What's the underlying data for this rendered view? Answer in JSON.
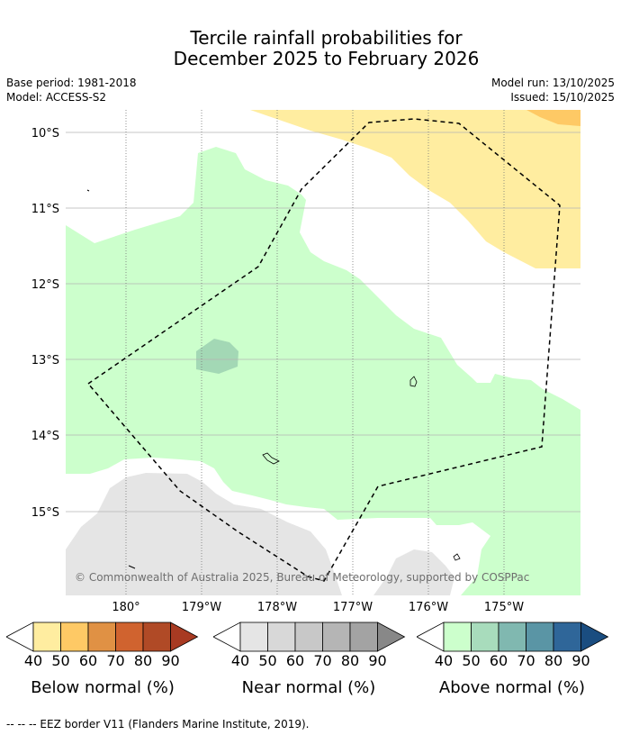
{
  "title": {
    "line1": "Tercile rainfall probabilities for",
    "line2": "December 2025 to February 2026"
  },
  "meta": {
    "base_period": "Base period: 1981-2018",
    "model": "Model: ACCESS-S2",
    "model_run": "Model run: 13/10/2025",
    "issued": "Issued: 15/10/2025"
  },
  "map": {
    "lat_labels": [
      "10°S",
      "11°S",
      "12°S",
      "13°S",
      "14°S",
      "15°S"
    ],
    "lon_labels": [
      "180°",
      "179°W",
      "178°W",
      "177°W",
      "176°W",
      "175°W"
    ],
    "attribution": "© Commonwealth of Australia 2025, Bureau of Meteorology, supported by COSPPac",
    "colors": {
      "below_40": "#ffeda0",
      "below_50": "#fec965",
      "near_40": "#e5e5e5",
      "above_40": "#ccffcc",
      "above_50": "#a3d8b5",
      "eez": "#000000"
    }
  },
  "colorbars": [
    {
      "label": "Below normal (%)",
      "ticks": [
        "40",
        "50",
        "60",
        "70",
        "80",
        "90"
      ],
      "colors": [
        "#ffeda0",
        "#fec965",
        "#e09144",
        "#d0632f",
        "#b04a26",
        "#a83a22"
      ]
    },
    {
      "label": "Near normal (%)",
      "ticks": [
        "40",
        "50",
        "60",
        "70",
        "80",
        "90"
      ],
      "colors": [
        "#e5e5e5",
        "#d8d8d8",
        "#c8c8c8",
        "#b5b5b5",
        "#a3a3a3",
        "#888888"
      ]
    },
    {
      "label": "Above normal (%)",
      "ticks": [
        "40",
        "50",
        "60",
        "70",
        "80",
        "90"
      ],
      "colors": [
        "#ccffcc",
        "#a8dcbc",
        "#80b8b0",
        "#5a95a5",
        "#2f6699",
        "#1a4d80"
      ]
    }
  ],
  "footnote": "--  --  -- EEZ border V11 (Flanders Marine Institute, 2019)."
}
